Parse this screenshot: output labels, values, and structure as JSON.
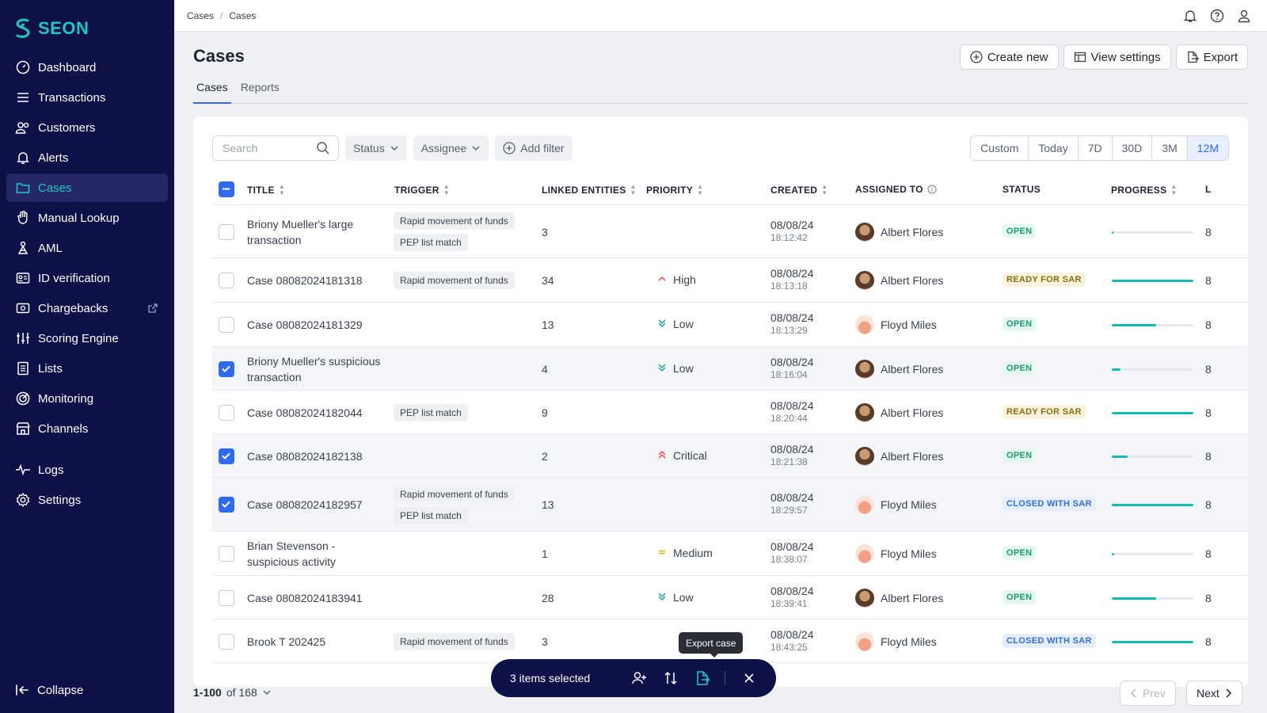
{
  "brand": {
    "name": "SEON",
    "accent": "#1ec7c0",
    "sidebar_bg": "#0e1147"
  },
  "sidebar": {
    "items": [
      {
        "label": "Dashboard",
        "icon": "dashboard-icon"
      },
      {
        "label": "Transactions",
        "icon": "list-icon"
      },
      {
        "label": "Customers",
        "icon": "users-icon"
      },
      {
        "label": "Alerts",
        "icon": "bell-icon"
      },
      {
        "label": "Cases",
        "icon": "folder-icon"
      },
      {
        "label": "Manual Lookup",
        "icon": "hand-icon"
      },
      {
        "label": "AML",
        "icon": "aml-icon"
      },
      {
        "label": "ID verification",
        "icon": "id-card-icon"
      },
      {
        "label": "Chargebacks",
        "icon": "card-icon"
      },
      {
        "label": "Scoring Engine",
        "icon": "sliders-icon"
      },
      {
        "label": "Lists",
        "icon": "list-doc-icon"
      },
      {
        "label": "Monitoring",
        "icon": "target-icon"
      },
      {
        "label": "Channels",
        "icon": "store-icon"
      },
      {
        "label": "Logs",
        "icon": "pulse-icon"
      },
      {
        "label": "Settings",
        "icon": "gear-icon"
      }
    ],
    "active": "Cases",
    "collapse_label": "Collapse"
  },
  "breadcrumb": [
    "Cases",
    "Cases"
  ],
  "page": {
    "title": "Cases",
    "actions": {
      "create": "Create new",
      "view": "View settings",
      "export": "Export"
    },
    "tabs": [
      "Cases",
      "Reports"
    ]
  },
  "filters": {
    "search_placeholder": "Search",
    "status": "Status",
    "assignee": "Assignee",
    "add_filter": "Add filter",
    "ranges": [
      "Custom",
      "Today",
      "7D",
      "30D",
      "3M",
      "12M"
    ],
    "active_range": "12M"
  },
  "table": {
    "columns": [
      "TITLE",
      "TRIGGER",
      "LINKED ENTITIES",
      "PRIORITY",
      "CREATED",
      "ASSIGNED TO",
      "STATUS",
      "PROGRESS",
      "L"
    ],
    "rows": [
      {
        "title": "Briony Mueller's large transaction",
        "triggers": [
          "Rapid movement of funds",
          "PEP list match"
        ],
        "linked": "3",
        "priority": "",
        "date": "08/08/24",
        "time": "18:12:42",
        "assignee": "Albert Flores",
        "status": "OPEN",
        "progress": 0.02,
        "selected": false
      },
      {
        "title": "Case 08082024181318",
        "triggers": [
          "Rapid movement of funds"
        ],
        "linked": "34",
        "priority": "High",
        "date": "08/08/24",
        "time": "18:13:18",
        "assignee": "Albert Flores",
        "status": "READY FOR SAR",
        "progress": 1.0,
        "selected": false
      },
      {
        "title": "Case 08082024181329",
        "triggers": [],
        "linked": "13",
        "priority": "Low",
        "date": "08/08/24",
        "time": "18:13:29",
        "assignee": "Floyd Miles",
        "status": "OPEN",
        "progress": 0.54,
        "selected": false
      },
      {
        "title": "Briony Mueller's suspicious transaction",
        "triggers": [],
        "linked": "4",
        "priority": "Low",
        "date": "08/08/24",
        "time": "18:16:04",
        "assignee": "Albert Flores",
        "status": "OPEN",
        "progress": 0.11,
        "selected": true
      },
      {
        "title": "Case 08082024182044",
        "triggers": [
          "PEP list match"
        ],
        "linked": "9",
        "priority": "",
        "date": "08/08/24",
        "time": "18:20:44",
        "assignee": "Albert Flores",
        "status": "READY FOR SAR",
        "progress": 1.0,
        "selected": false
      },
      {
        "title": "Case 08082024182138",
        "triggers": [],
        "linked": "2",
        "priority": "Critical",
        "date": "08/08/24",
        "time": "18:21:38",
        "assignee": "Albert Flores",
        "status": "OPEN",
        "progress": 0.19,
        "selected": true
      },
      {
        "title": "Case 08082024182957",
        "triggers": [
          "Rapid movement of funds",
          "PEP list match"
        ],
        "linked": "13",
        "priority": "",
        "date": "08/08/24",
        "time": "18:29:57",
        "assignee": "Floyd Miles",
        "status": "CLOSED WITH SAR",
        "progress": 1.0,
        "selected": true
      },
      {
        "title": "Brian Stevenson - suspicious activity",
        "triggers": [],
        "linked": "1",
        "priority": "Medium",
        "date": "08/08/24",
        "time": "18:38:07",
        "assignee": "Floyd Miles",
        "status": "OPEN",
        "progress": 0.03,
        "selected": false
      },
      {
        "title": "Case 08082024183941",
        "triggers": [],
        "linked": "28",
        "priority": "Low",
        "date": "08/08/24",
        "time": "18:39:41",
        "assignee": "Albert Flores",
        "status": "OPEN",
        "progress": 0.54,
        "selected": false
      },
      {
        "title": "Brook T 202425",
        "triggers": [
          "Rapid movement of funds"
        ],
        "linked": "3",
        "priority": "",
        "date": "08/08/24",
        "time": "18:43:25",
        "assignee": "Floyd Miles",
        "status": "CLOSED WITH SAR",
        "progress": 1.0,
        "selected": false
      }
    ],
    "last_column_value": "8"
  },
  "pagination": {
    "range": "1-100",
    "of": "of 168",
    "prev": "Prev",
    "next": "Next"
  },
  "bulk": {
    "count_label": "3 items selected",
    "tooltip": "Export case"
  }
}
